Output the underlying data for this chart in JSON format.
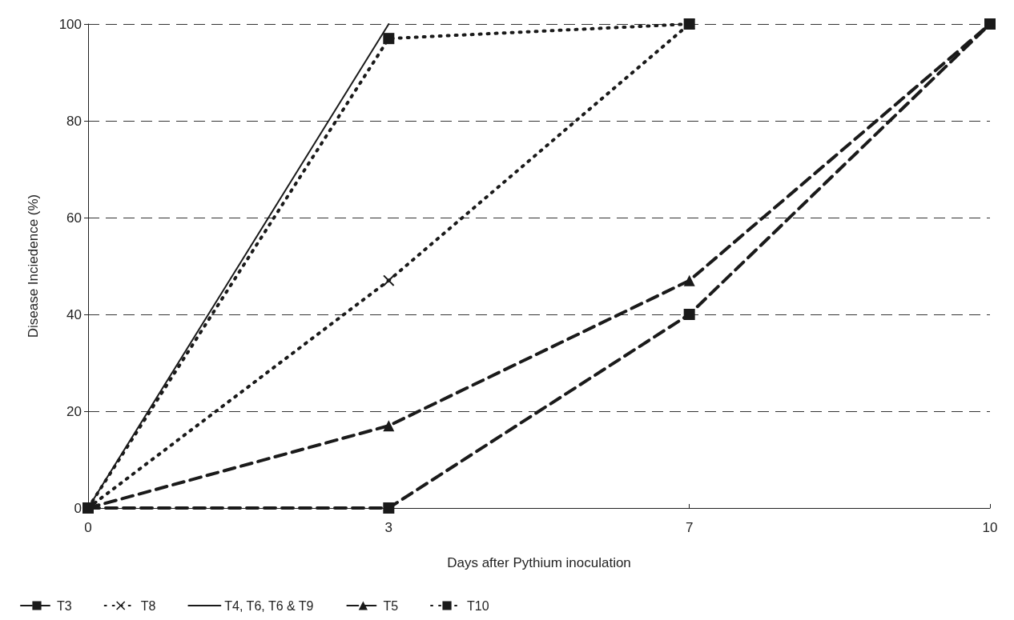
{
  "chart_data": {
    "type": "line",
    "xlabel": "Days after Pythium inoculation",
    "ylabel": "Disease Inciedence (%)",
    "categories": [
      "0",
      "3",
      "7",
      "10"
    ],
    "ylim": [
      0,
      100
    ],
    "yticks": [
      0,
      20,
      40,
      60,
      80,
      100
    ],
    "grid": "y",
    "legend": "bottom left",
    "series": [
      {
        "name": "T3",
        "color": "#1a1a1a",
        "values": [
          0,
          0,
          40,
          100
        ],
        "marker": "square",
        "line_style": "dashed"
      },
      {
        "name": "T8",
        "color": "#1a1a1a",
        "values": [
          0,
          47,
          100,
          null
        ],
        "marker": "cross",
        "line_style": "dotted"
      },
      {
        "name": "T4, T6, T6 & T9",
        "color": "#1a1a1a",
        "values": [
          0,
          100,
          null,
          null
        ],
        "line_style": "solid"
      },
      {
        "name": "T5",
        "color": "#1a1a1a",
        "values": [
          0,
          17,
          47,
          100
        ],
        "marker": "triangle",
        "line_style": "dashed"
      },
      {
        "name": "T10",
        "color": "#1a1a1a",
        "values": [
          0,
          97,
          100,
          null
        ],
        "marker": "square",
        "line_style": "dotted"
      }
    ]
  }
}
